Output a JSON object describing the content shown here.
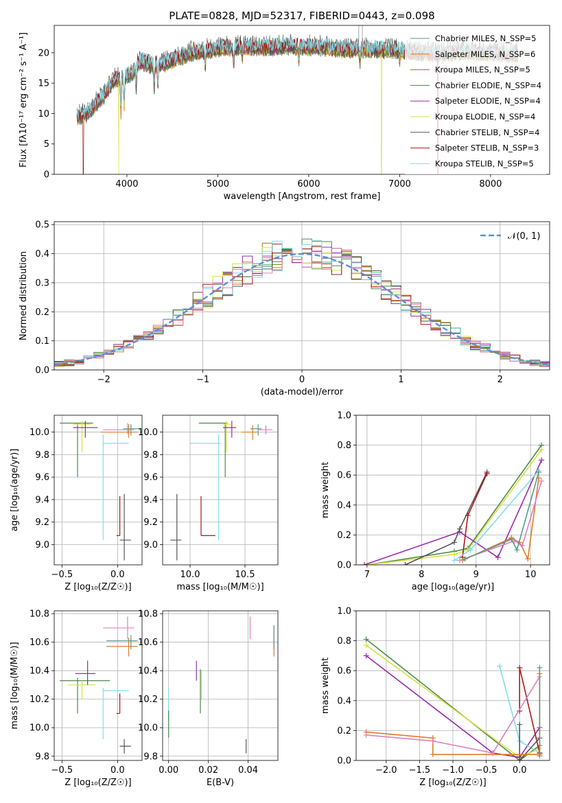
{
  "title": "PLATE=0828, MJD=52317, FIBERID=0443, z=0.098",
  "colors": {
    "chabrier_miles": "#5a9a8f",
    "salpeter_miles": "#e07a1f",
    "kroupa_miles": "#9a7a1a",
    "chabrier_elodie": "#4a8a4a",
    "salpeter_elodie": "#9a2aa8",
    "kroupa_elodie": "#d8e040",
    "chabrier_stelib": "#555555",
    "salpeter_stelib": "#aa1818",
    "kroupa_stelib": "#80dce8",
    "pink": "#e080b8",
    "purple": "#8a3aa8",
    "normal_curve": "#5a8ed8",
    "grid": "#b0b0b0"
  },
  "chart_data": [
    {
      "id": "spectrum",
      "type": "line",
      "xlabel": "wavelength [Angstrom, rest frame]",
      "ylabel": "Flux [fλ10⁻¹⁷ erg cm⁻² s⁻¹ A⁻¹]",
      "xlim": [
        3200,
        8650
      ],
      "ylim": [
        0,
        24.5
      ],
      "xticks": [
        4000,
        5000,
        6000,
        7000,
        8000
      ],
      "yticks": [
        0,
        5,
        10,
        15,
        20
      ],
      "grid": false,
      "legend_position": "top-right",
      "series": [
        {
          "name": "Chabrier MILES, N_SSP=5",
          "color_key": "chabrier_miles"
        },
        {
          "name": "Salpeter MILES, N_SSP=6",
          "color_key": "salpeter_miles"
        },
        {
          "name": "Kroupa MILES, N_SSP=5",
          "color_key": "kroupa_miles"
        },
        {
          "name": "Chabrier ELODIE, N_SSP=4",
          "color_key": "chabrier_elodie"
        },
        {
          "name": "Salpeter ELODIE, N_SSP=4",
          "color_key": "salpeter_elodie"
        },
        {
          "name": "Kroupa ELODIE, N_SSP=4",
          "color_key": "kroupa_elodie"
        },
        {
          "name": "Chabrier STELIB, N_SSP=4",
          "color_key": "chabrier_stelib"
        },
        {
          "name": "Salpeter STELIB, N_SSP=3",
          "color_key": "salpeter_stelib"
        },
        {
          "name": "Kroupa STELIB, N_SSP=5",
          "color_key": "kroupa_stelib"
        }
      ],
      "continuum_points": [
        [
          3450,
          9.5
        ],
        [
          3550,
          9.8
        ],
        [
          3650,
          11.5
        ],
        [
          3750,
          13.0
        ],
        [
          3850,
          15.5
        ],
        [
          3950,
          16.0
        ],
        [
          4050,
          16.5
        ],
        [
          4150,
          18.5
        ],
        [
          4250,
          18.0
        ],
        [
          4350,
          18.0
        ],
        [
          4450,
          18.5
        ],
        [
          4550,
          19.0
        ],
        [
          4700,
          20.0
        ],
        [
          4900,
          20.5
        ],
        [
          5100,
          20.8
        ],
        [
          5300,
          21.0
        ],
        [
          5500,
          20.8
        ],
        [
          5700,
          21.0
        ],
        [
          5900,
          21.0
        ],
        [
          6100,
          21.0
        ],
        [
          6300,
          20.6
        ],
        [
          6500,
          20.5
        ],
        [
          6700,
          20.6
        ],
        [
          6900,
          20.5
        ],
        [
          7100,
          20.2
        ],
        [
          7300,
          20.0
        ],
        [
          7500,
          19.8
        ],
        [
          7700,
          20.2
        ],
        [
          7900,
          20.0
        ],
        [
          8100,
          20.0
        ],
        [
          8300,
          19.8
        ]
      ],
      "absorption_features": [
        [
          3934,
          5.5
        ],
        [
          3969,
          4.5
        ],
        [
          4102,
          3.0
        ],
        [
          4300,
          4.0
        ],
        [
          4340,
          3.0
        ],
        [
          4861,
          2.5
        ],
        [
          5175,
          3.0
        ],
        [
          5270,
          1.5
        ],
        [
          5890,
          2.0
        ],
        [
          6563,
          2.0
        ],
        [
          7000,
          1.5
        ]
      ],
      "spikes": [
        [
          6550,
          24.5
        ],
        [
          6590,
          24.5
        ],
        [
          6620,
          22.5
        ],
        [
          7170,
          20.5
        ]
      ],
      "dropouts": [
        [
          3520,
          "salpeter_stelib"
        ],
        [
          3910,
          "kroupa_elodie"
        ],
        [
          6800,
          "kroupa_elodie"
        ],
        [
          7420,
          "salpeter_stelib"
        ]
      ]
    },
    {
      "id": "residuals",
      "type": "histogram",
      "xlabel": "(data-model)/error",
      "ylabel": "Normed distribution",
      "xlim": [
        -2.5,
        2.5
      ],
      "ylim": [
        0,
        0.51
      ],
      "xticks": [
        -2,
        -1,
        0,
        1,
        2
      ],
      "yticks": [
        0.0,
        0.1,
        0.2,
        0.3,
        0.4,
        0.5
      ],
      "grid": true,
      "legend_position": "top-right",
      "curve_label": "𝒩(0, 1)",
      "bin_width": 0.1
    },
    {
      "id": "age_vs_Z",
      "type": "errorbar",
      "xlabel": "Z [log₁₀(Z/Z☉)]",
      "ylabel": "age  [log₁₀(age/yr)]",
      "xlim": [
        -0.57,
        0.22
      ],
      "ylim": [
        8.82,
        10.15
      ],
      "xticks": [
        -0.5,
        0.0
      ],
      "xtick_labels": [
        "−0.5",
        "0.0"
      ],
      "yticks": [
        9.0,
        9.2,
        9.4,
        9.6,
        9.8,
        10.0
      ],
      "grid": true,
      "points": [
        {
          "x": -0.36,
          "xlo": -0.52,
          "xhi": -0.22,
          "y": 10.08,
          "ylo": 9.6,
          "yhi": 10.08,
          "color_key": "chabrier_elodie"
        },
        {
          "x": -0.32,
          "xlo": -0.4,
          "xhi": -0.24,
          "y": 10.07,
          "ylo": 9.82,
          "yhi": 10.1,
          "color_key": "kroupa_elodie"
        },
        {
          "x": -0.29,
          "xlo": -0.4,
          "xhi": -0.18,
          "y": 10.04,
          "ylo": 9.95,
          "yhi": 10.1,
          "color_key": "salpeter_elodie"
        },
        {
          "x": 0.09,
          "xlo": -0.13,
          "xhi": 0.15,
          "y": 10.02,
          "ylo": 9.98,
          "yhi": 10.08,
          "color_key": "pink"
        },
        {
          "x": 0.1,
          "xlo": -0.15,
          "xhi": 0.18,
          "y": 10.0,
          "ylo": 9.95,
          "yhi": 10.07,
          "color_key": "salpeter_miles"
        },
        {
          "x": 0.12,
          "xlo": 0.05,
          "xhi": 0.2,
          "y": 10.03,
          "ylo": 9.97,
          "yhi": 10.07,
          "color_key": "chabrier_miles"
        },
        {
          "x": -0.13,
          "xlo": -0.13,
          "xhi": 0.1,
          "y": 9.9,
          "ylo": 9.04,
          "yhi": 9.98,
          "color_key": "kroupa_stelib"
        },
        {
          "x": 0.02,
          "xlo": -0.01,
          "xhi": 0.02,
          "y": 9.08,
          "ylo": 9.08,
          "yhi": 9.43,
          "color_key": "salpeter_stelib"
        },
        {
          "x": 0.06,
          "xlo": 0.02,
          "xhi": 0.12,
          "y": 9.04,
          "ylo": 8.86,
          "yhi": 9.45,
          "color_key": "chabrier_stelib"
        }
      ]
    },
    {
      "id": "age_vs_mass",
      "type": "errorbar",
      "xlabel": "mass [log₁₀(M/M☉)]",
      "xlim": [
        9.75,
        10.8
      ],
      "ylim": [
        8.82,
        10.15
      ],
      "xticks": [
        10.0,
        10.5
      ],
      "yticks": [
        9.0,
        9.2,
        9.4,
        9.6,
        9.8,
        10.0
      ],
      "grid": true,
      "points": [
        {
          "x": 9.88,
          "xlo": 9.82,
          "xhi": 9.92,
          "y": 9.04,
          "ylo": 8.86,
          "yhi": 9.45,
          "color_key": "chabrier_stelib"
        },
        {
          "x": 10.1,
          "xlo": 10.1,
          "xhi": 10.23,
          "y": 9.08,
          "ylo": 9.08,
          "yhi": 9.43,
          "color_key": "salpeter_stelib"
        },
        {
          "x": 10.26,
          "xlo": 10.0,
          "xhi": 10.28,
          "y": 9.9,
          "ylo": 9.04,
          "yhi": 9.98,
          "color_key": "kroupa_stelib"
        },
        {
          "x": 10.32,
          "xlo": 10.08,
          "xhi": 10.34,
          "y": 10.08,
          "ylo": 9.6,
          "yhi": 10.08,
          "color_key": "chabrier_elodie"
        },
        {
          "x": 10.33,
          "xlo": 10.3,
          "xhi": 10.37,
          "y": 10.07,
          "ylo": 9.82,
          "yhi": 10.1,
          "color_key": "kroupa_elodie"
        },
        {
          "x": 10.38,
          "xlo": 10.3,
          "xhi": 10.42,
          "y": 10.04,
          "ylo": 9.95,
          "yhi": 10.1,
          "color_key": "salpeter_elodie"
        },
        {
          "x": 10.57,
          "xlo": 10.47,
          "xhi": 10.62,
          "y": 10.0,
          "ylo": 9.93,
          "yhi": 10.06,
          "color_key": "salpeter_miles"
        },
        {
          "x": 10.62,
          "xlo": 10.55,
          "xhi": 10.65,
          "y": 10.03,
          "ylo": 9.97,
          "yhi": 10.07,
          "color_key": "chabrier_miles"
        },
        {
          "x": 10.69,
          "xlo": 10.62,
          "xhi": 10.75,
          "y": 10.02,
          "ylo": 9.98,
          "yhi": 10.06,
          "color_key": "pink"
        }
      ]
    },
    {
      "id": "weight_vs_age",
      "type": "line",
      "xlabel": "age  [log₁₀(age/yr)]",
      "ylabel": "mass weight",
      "xlim": [
        6.8,
        10.35
      ],
      "ylim": [
        0,
        1.0
      ],
      "xticks": [
        7,
        8,
        9,
        10
      ],
      "yticks": [
        0.0,
        0.2,
        0.4,
        0.6,
        0.8,
        1.0
      ],
      "grid": true,
      "series": [
        {
          "color_key": "chabrier_elodie",
          "x": [
            7.0,
            8.6,
            8.85,
            10.2
          ],
          "y": [
            0.0,
            0.09,
            0.11,
            0.8
          ]
        },
        {
          "color_key": "kroupa_elodie",
          "x": [
            7.0,
            8.6,
            8.85,
            10.2
          ],
          "y": [
            0.0,
            0.07,
            0.1,
            0.77
          ]
        },
        {
          "color_key": "salpeter_elodie",
          "x": [
            6.95,
            8.7,
            9.4,
            10.2
          ],
          "y": [
            0.0,
            0.22,
            0.05,
            0.7
          ]
        },
        {
          "color_key": "chabrier_stelib",
          "x": [
            7.7,
            8.6,
            8.7,
            9.2
          ],
          "y": [
            0.0,
            0.15,
            0.24,
            0.62
          ]
        },
        {
          "color_key": "salpeter_stelib",
          "x": [
            8.75,
            8.85,
            9.2
          ],
          "y": [
            0.05,
            0.33,
            0.61
          ]
        },
        {
          "color_key": "kroupa_stelib",
          "x": [
            8.6,
            8.9,
            10.15
          ],
          "y": [
            0.03,
            0.1,
            0.63
          ]
        },
        {
          "color_key": "salpeter_miles",
          "x": [
            8.75,
            9.65,
            9.8,
            9.95,
            10.15
          ],
          "y": [
            0.03,
            0.18,
            0.15,
            0.04,
            0.58
          ]
        },
        {
          "color_key": "pink",
          "x": [
            8.7,
            9.7,
            9.85,
            10.2
          ],
          "y": [
            0.03,
            0.16,
            0.13,
            0.56
          ]
        },
        {
          "color_key": "chabrier_miles",
          "x": [
            8.8,
            9.65,
            9.75,
            10.15
          ],
          "y": [
            0.04,
            0.17,
            0.1,
            0.62
          ]
        }
      ]
    },
    {
      "id": "mass_vs_Z",
      "type": "errorbar",
      "xlabel": "Z [log₁₀(Z/Z☉)]",
      "ylabel": "mass [log₁₀(M/M☉)]",
      "xlim": [
        -0.57,
        0.22
      ],
      "ylim": [
        9.77,
        10.82
      ],
      "xticks": [
        -0.5,
        0.0
      ],
      "xtick_labels": [
        "−0.5",
        "0.0"
      ],
      "yticks": [
        9.8,
        10.0,
        10.2,
        10.4,
        10.6,
        10.8
      ],
      "grid": true,
      "points": [
        {
          "x": -0.36,
          "xlo": -0.52,
          "xhi": -0.07,
          "y": 10.33,
          "ylo": 10.1,
          "yhi": 10.35,
          "color_key": "chabrier_elodie"
        },
        {
          "x": -0.32,
          "xlo": -0.45,
          "xhi": -0.2,
          "y": 10.3,
          "ylo": 10.2,
          "yhi": 10.33,
          "color_key": "kroupa_elodie"
        },
        {
          "x": -0.27,
          "xlo": -0.38,
          "xhi": -0.2,
          "y": 10.38,
          "ylo": 10.3,
          "yhi": 10.47,
          "color_key": "salpeter_elodie"
        },
        {
          "x": -0.13,
          "xlo": -0.13,
          "xhi": 0.1,
          "y": 10.26,
          "ylo": 9.92,
          "yhi": 10.28,
          "color_key": "kroupa_stelib"
        },
        {
          "x": 0.02,
          "xlo": -0.01,
          "xhi": 0.02,
          "y": 10.1,
          "ylo": 10.1,
          "yhi": 10.24,
          "color_key": "salpeter_stelib"
        },
        {
          "x": 0.06,
          "xlo": 0.02,
          "xhi": 0.12,
          "y": 9.87,
          "ylo": 9.82,
          "yhi": 9.92,
          "color_key": "chabrier_stelib"
        },
        {
          "x": 0.09,
          "xlo": -0.13,
          "xhi": 0.15,
          "y": 10.7,
          "ylo": 10.62,
          "yhi": 10.78,
          "color_key": "pink"
        },
        {
          "x": 0.1,
          "xlo": -0.1,
          "xhi": 0.18,
          "y": 10.57,
          "ylo": 10.5,
          "yhi": 10.63,
          "color_key": "salpeter_miles"
        },
        {
          "x": 0.12,
          "xlo": -0.1,
          "xhi": 0.18,
          "y": 10.61,
          "ylo": 10.55,
          "yhi": 10.65,
          "color_key": "chabrier_miles"
        }
      ]
    },
    {
      "id": "mass_vs_ebv",
      "type": "errorbar",
      "xlabel": "E(B-V)",
      "xlim": [
        -0.003,
        0.055
      ],
      "ylim": [
        9.77,
        10.82
      ],
      "xticks": [
        0.0,
        0.02,
        0.04
      ],
      "xtick_labels": [
        "0.00",
        "0.02",
        "0.04"
      ],
      "yticks": [
        9.8,
        10.0,
        10.2,
        10.4,
        10.6,
        10.8
      ],
      "grid": true,
      "points": [
        {
          "x": 0.0,
          "ylo": 10.05,
          "yhi": 10.28,
          "color_key": "kroupa_stelib"
        },
        {
          "x": 0.0,
          "ylo": 9.93,
          "yhi": 10.12,
          "color_key": "chabrier_elodie"
        },
        {
          "x": 0.014,
          "ylo": 10.33,
          "yhi": 10.47,
          "color_key": "purple"
        },
        {
          "x": 0.016,
          "ylo": 10.1,
          "yhi": 10.41,
          "color_key": "chabrier_elodie"
        },
        {
          "x": 0.0165,
          "ylo": 10.2,
          "yhi": 10.4,
          "color_key": "kroupa_elodie"
        },
        {
          "x": 0.039,
          "ylo": 9.82,
          "yhi": 9.92,
          "color_key": "chabrier_stelib"
        },
        {
          "x": 0.041,
          "ylo": 10.62,
          "yhi": 10.78,
          "color_key": "pink"
        },
        {
          "x": 0.053,
          "ylo": 10.5,
          "yhi": 10.71,
          "color_key": "salpeter_miles"
        },
        {
          "x": 0.053,
          "ylo": 10.55,
          "yhi": 10.72,
          "color_key": "chabrier_miles"
        }
      ]
    },
    {
      "id": "weight_vs_Z",
      "type": "line",
      "xlabel": "Z [log₁₀(Z/Z☉)]",
      "ylabel": "mass weight",
      "xlim": [
        -2.45,
        0.45
      ],
      "ylim": [
        0,
        1.0
      ],
      "xticks": [
        -2.0,
        -1.5,
        -1.0,
        -0.5,
        0.0
      ],
      "xtick_labels": [
        "−2.0",
        "−1.5",
        "−1.0",
        "−0.5",
        "0.0"
      ],
      "yticks": [
        0.0,
        0.2,
        0.4,
        0.6,
        0.8,
        1.0
      ],
      "grid": true,
      "series": [
        {
          "color_key": "chabrier_elodie",
          "x": [
            -2.3,
            0.0,
            0.3
          ],
          "y": [
            0.81,
            0.0,
            0.1
          ]
        },
        {
          "color_key": "kroupa_elodie",
          "x": [
            -2.3,
            0.0,
            0.3
          ],
          "y": [
            0.77,
            0.02,
            0.08
          ]
        },
        {
          "color_key": "salpeter_elodie",
          "x": [
            -2.3,
            -0.4,
            0.0,
            0.3
          ],
          "y": [
            0.7,
            0.05,
            0.02,
            0.22
          ]
        },
        {
          "color_key": "kroupa_stelib",
          "x": [
            -0.3,
            0.0,
            0.3
          ],
          "y": [
            0.63,
            0.13,
            0.05
          ]
        },
        {
          "color_key": "salpeter_stelib",
          "x": [
            0.0,
            0.0,
            0.3
          ],
          "y": [
            0.33,
            0.62,
            0.05
          ]
        },
        {
          "color_key": "chabrier_stelib",
          "x": [
            0.0,
            0.0,
            0.3
          ],
          "y": [
            0.24,
            0.0,
            0.15
          ]
        },
        {
          "color_key": "salpeter_miles",
          "x": [
            -2.3,
            -1.3,
            -1.3,
            0.3,
            0.3
          ],
          "y": [
            0.19,
            0.15,
            0.04,
            0.04,
            0.58
          ]
        },
        {
          "color_key": "pink",
          "x": [
            -2.3,
            -1.3,
            -0.4,
            0.3
          ],
          "y": [
            0.17,
            0.13,
            0.05,
            0.56
          ]
        },
        {
          "color_key": "chabrier_miles",
          "x": [
            0.3,
            0.3
          ],
          "y": [
            0.62,
            0.03
          ]
        }
      ]
    }
  ]
}
